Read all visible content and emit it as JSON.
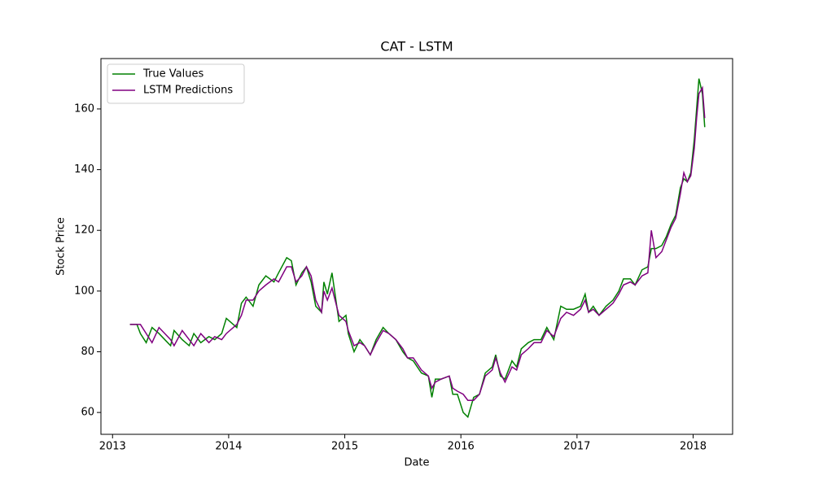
{
  "chart_data": {
    "type": "line",
    "title": "CAT - LSTM",
    "x_label": "Date",
    "y_label": "Stock Price",
    "x": [
      2013.15,
      2013.21,
      2013.24,
      2013.29,
      2013.34,
      2013.4,
      2013.45,
      2013.5,
      2013.53,
      2013.6,
      2013.66,
      2013.7,
      2013.76,
      2013.83,
      2013.88,
      2013.94,
      2013.98,
      2014.07,
      2014.11,
      2014.15,
      2014.21,
      2014.26,
      2014.32,
      2014.39,
      2014.43,
      2014.5,
      2014.54,
      2014.58,
      2014.63,
      2014.67,
      2014.71,
      2014.75,
      2014.8,
      2014.82,
      2014.85,
      2014.89,
      2014.95,
      2015.01,
      2015.03,
      2015.08,
      2015.13,
      2015.17,
      2015.22,
      2015.27,
      2015.33,
      2015.38,
      2015.44,
      2015.5,
      2015.54,
      2015.59,
      2015.66,
      2015.72,
      2015.75,
      2015.78,
      2015.83,
      2015.9,
      2015.93,
      2015.97,
      2016.02,
      2016.06,
      2016.11,
      2016.16,
      2016.21,
      2016.27,
      2016.3,
      2016.34,
      2016.38,
      2016.44,
      2016.48,
      2016.52,
      2016.58,
      2016.63,
      2016.69,
      2016.74,
      2016.8,
      2016.86,
      2016.91,
      2016.97,
      2017.03,
      2017.07,
      2017.1,
      2017.14,
      2017.19,
      2017.25,
      2017.31,
      2017.36,
      2017.4,
      2017.46,
      2017.5,
      2017.56,
      2017.61,
      2017.64,
      2017.68,
      2017.73,
      2017.77,
      2017.81,
      2017.85,
      2017.89,
      2017.92,
      2017.95,
      2017.98,
      2018.01,
      2018.03,
      2018.05,
      2018.08,
      2018.1
    ],
    "series": [
      {
        "name": "True Values",
        "color": "#008000",
        "values": [
          89,
          89,
          86,
          83,
          88,
          86,
          84,
          82,
          87,
          84,
          82,
          86,
          83,
          85,
          84,
          86,
          91,
          88,
          96,
          98,
          95,
          102,
          105,
          103,
          106,
          111,
          110,
          102,
          106,
          108,
          103,
          95,
          93,
          103,
          99,
          106,
          90,
          92,
          86,
          80,
          84,
          82,
          79,
          84,
          88,
          86,
          84,
          80,
          78,
          77,
          73,
          72,
          65,
          71,
          71,
          72,
          66,
          66,
          60,
          58.5,
          65,
          66,
          73,
          75,
          79,
          72,
          71,
          77,
          75,
          81,
          83,
          84,
          84,
          88,
          84,
          95,
          94,
          94,
          95,
          99,
          93,
          95,
          92,
          95,
          97,
          100,
          104,
          104,
          102,
          107,
          108,
          114,
          114,
          115,
          118,
          122,
          125,
          134,
          137,
          136,
          139,
          150,
          160,
          170,
          165,
          154
        ]
      },
      {
        "name": "LSTM Predictions",
        "color": "#800080",
        "values": [
          89,
          89,
          89,
          86,
          83,
          88,
          86,
          84,
          82,
          87,
          84,
          82,
          86,
          83,
          85,
          84,
          86,
          89,
          92,
          97,
          97,
          100,
          102,
          104,
          103,
          108,
          108,
          103,
          105,
          108,
          105,
          97,
          93,
          100,
          97,
          101,
          92,
          90,
          87,
          82,
          83,
          82,
          79,
          83,
          87,
          86,
          84,
          81,
          78,
          78,
          74,
          72,
          68,
          70,
          71,
          72,
          68,
          67,
          66,
          64,
          64,
          66,
          72,
          74,
          78,
          73,
          70,
          75,
          74,
          79,
          81,
          83,
          83,
          87,
          85,
          91,
          93,
          92,
          94,
          97,
          93,
          94,
          92,
          94,
          96,
          99,
          102,
          103,
          102,
          105,
          106,
          120,
          111,
          113,
          117,
          121,
          124,
          132,
          139,
          136,
          138,
          147,
          157,
          165,
          167,
          157
        ]
      }
    ],
    "xlim": [
      2012.9,
      2018.34
    ],
    "xticks": [
      2013,
      2014,
      2015,
      2016,
      2017,
      2018
    ],
    "ylim": [
      52.8,
      176.6
    ],
    "yticks": [
      60,
      80,
      100,
      120,
      140,
      160
    ],
    "legend": "upper left"
  }
}
